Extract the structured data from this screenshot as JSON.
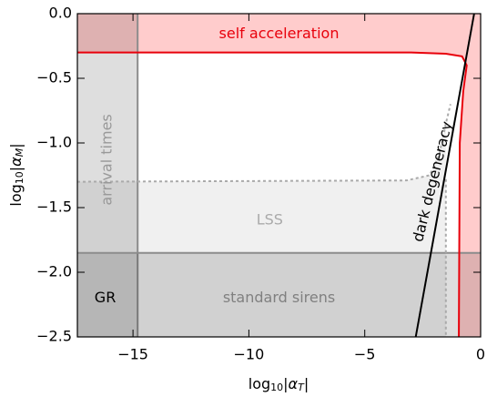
{
  "chart_data": {
    "type": "line",
    "xlabel": [
      "log",
      "10",
      "|α",
      "T",
      "|"
    ],
    "ylabel": [
      "log",
      "10",
      "|α",
      "M",
      "|"
    ],
    "xlim": [
      -17.4,
      0
    ],
    "ylim": [
      -2.5,
      0
    ],
    "xticks": [
      {
        "value": -15,
        "label": "−15"
      },
      {
        "value": -10,
        "label": "−10"
      },
      {
        "value": -5,
        "label": "−5"
      },
      0
    ],
    "yticks": [
      {
        "value": -2.5,
        "label": "−2.5"
      },
      {
        "value": -2,
        "label": "−2.0"
      },
      {
        "value": -1.5,
        "label": "−1.5"
      },
      {
        "value": -1,
        "label": "−1.0"
      },
      {
        "value": -0.5,
        "label": "−0.5"
      },
      {
        "value": 0,
        "label": "0.0"
      }
    ],
    "series": [
      {
        "color": "#e8000b",
        "fill": "rgba(255,0,0,0.2)",
        "x": [
          -17.4,
          -3,
          -1.5,
          -0.8,
          -0.6,
          -0.75,
          -0.9,
          -0.94
        ],
        "values": [
          -0.3,
          -0.3,
          -0.31,
          -0.33,
          -0.4,
          -0.6,
          -1.0,
          -2.5
        ]
      },
      {
        "color": "#aaaaaa",
        "dash": true,
        "x": [
          -17.4,
          -3.2,
          -2.2,
          -1.8,
          -1.5,
          -1.3
        ],
        "values": [
          -1.3,
          -1.29,
          -1.25,
          -1.1,
          -0.85,
          -0.7
        ]
      },
      {
        "color": "#aaaaaa",
        "dash": true,
        "x": [
          -1.5,
          -1.5
        ],
        "values": [
          -1.28,
          -2.5
        ]
      },
      {
        "color": "#000000",
        "x": [
          -2.8,
          -0.28
        ],
        "values": [
          -2.5,
          0
        ]
      }
    ],
    "region": {
      "color": "rgba(0,0,0,0.06)",
      "x": [
        -17.4,
        -3.2,
        -2.2,
        -1.8,
        -1.5,
        -1.5,
        -17.4
      ],
      "y": [
        -1.3,
        -1.29,
        -1.25,
        -1.1,
        -0.85,
        -2.5,
        -2.5
      ]
    },
    "bands": [
      {
        "axis": "x",
        "max": -14.8,
        "color": "rgba(0,0,0,0.13)",
        "edge": "#8c8c8c"
      },
      {
        "axis": "y",
        "max": -1.85,
        "color": "rgba(0,0,0,0.13)",
        "edge": "#8c8c8c"
      }
    ],
    "annotations": [
      {
        "text": "self acceleration",
        "x": -8.7,
        "y": -0.16,
        "color": "#e8000b",
        "rotate": 0
      },
      {
        "text": "arrival times",
        "x": -16.1,
        "y": -1.13,
        "color": "#999999",
        "rotate": -90
      },
      {
        "text": "LSS",
        "x": -9.1,
        "y": -1.6,
        "color": "#aaaaaa",
        "rotate": 0
      },
      {
        "text": "GR",
        "x": -16.2,
        "y": -2.2,
        "color": "#000000",
        "rotate": 0
      },
      {
        "text": "standard sirens",
        "x": -8.7,
        "y": -2.2,
        "color": "#808080",
        "rotate": 0
      },
      {
        "text": "dark degeneracy",
        "x": -2.05,
        "y": -1.3,
        "color": "#000000",
        "rotate": -76
      }
    ]
  }
}
